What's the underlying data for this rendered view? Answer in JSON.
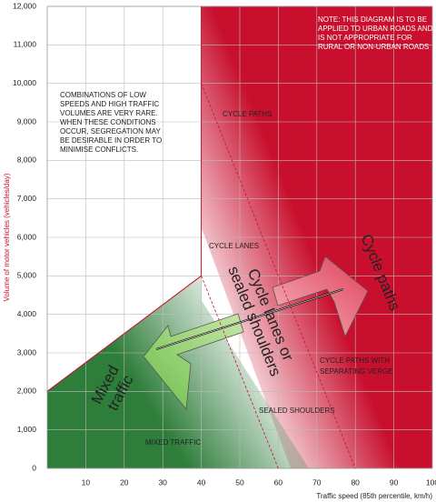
{
  "chart_data": {
    "type": "zones",
    "x_label": "Traffic speed (85th percentile, km/h)",
    "y_label": "Volume of motor vehicles (vehicles/day)",
    "xlim": [
      0,
      100
    ],
    "xticks": [
      10,
      20,
      30,
      40,
      50,
      60,
      70,
      80,
      90,
      100
    ],
    "ylim": [
      0,
      12000
    ],
    "yticks": [
      0,
      {
        "value": 1000,
        "label": "1,000"
      },
      {
        "value": 2000,
        "label": "2,000"
      },
      {
        "value": 3000,
        "label": "3,000"
      },
      {
        "value": 4000,
        "label": "4,000"
      },
      {
        "value": 5000,
        "label": "5,000"
      },
      {
        "value": 6000,
        "label": "6,000"
      },
      {
        "value": 7000,
        "label": "7,000"
      },
      {
        "value": 8000,
        "label": "8,000"
      },
      {
        "value": 9000,
        "label": "9,000"
      },
      {
        "value": 10000,
        "label": "10,000"
      },
      {
        "value": 11000,
        "label": "11,000"
      },
      {
        "value": 12000,
        "label": "12,000"
      }
    ],
    "grid": true,
    "boundaries": [
      {
        "x": [
          0,
          40,
          40
        ],
        "y": [
          2000,
          5000,
          12000
        ],
        "color": "#c8102e",
        "dashed": false
      },
      {
        "x": [
          40,
          60
        ],
        "y": [
          5000,
          0
        ],
        "color": "#c8102e",
        "dashed": true
      },
      {
        "x": [
          40,
          80
        ],
        "y": [
          10000,
          0
        ],
        "color": "#c8102e",
        "dashed": true
      }
    ],
    "zone_labels": [
      "CYCLE PATHS",
      "CYCLE LANES",
      "CYCLE PATHS WITH",
      "SEPARATING VERGE",
      "SEALED SHOULDERS",
      "MIXED TRAFFIC"
    ],
    "note_right": [
      "NOTE: THIS DIAGRAM IS TO BE",
      "APPLIED TO URBAN ROADS AND",
      "IS NOT APPROPRIATE FOR",
      "RURAL OR NON-URBAN ROADS"
    ],
    "note_left": [
      "COMBINATIONS OF LOW",
      "SPEEDS AND HIGH TRAFFIC",
      "VOLUMES ARE VERY RARE.",
      "WHEN THESE CONDITIONS",
      "OCCUR, SEGREGATION MAY",
      "BE DESIRABLE IN ORDER TO",
      "MINIMISE CONFLICTS."
    ],
    "arrow_labels": [
      [
        "Mixed",
        "traffic"
      ],
      [
        "Cycle lanes or",
        "sealed shoulders"
      ],
      [
        "Cycle paths"
      ]
    ]
  }
}
